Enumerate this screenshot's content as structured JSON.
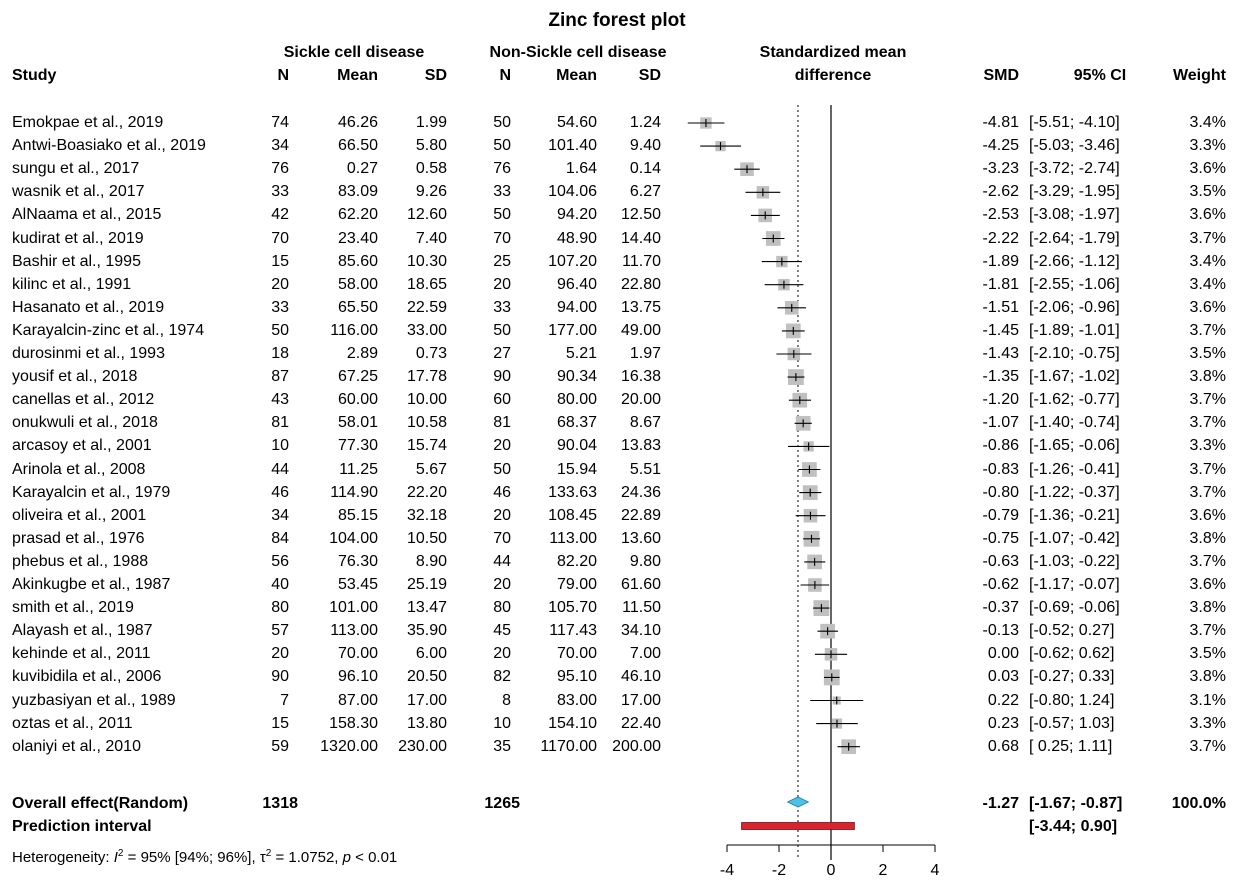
{
  "chart_data": {
    "type": "forest",
    "title": "Zinc forest plot",
    "group_headers": {
      "sickle": "Sickle cell disease",
      "non_sickle": "Non-Sickle cell disease",
      "smd_col": "Standardized mean",
      "smd_col2": "difference"
    },
    "columns": {
      "study": "Study",
      "n1": "N",
      "mean1": "Mean",
      "sd1": "SD",
      "n2": "N",
      "mean2": "Mean",
      "sd2": "SD",
      "smd": "SMD",
      "ci": "95% CI",
      "weight": "Weight"
    },
    "studies": [
      {
        "study": "Emokpae et al., 2019",
        "n1": "74",
        "mean1": "46.26",
        "sd1": "1.99",
        "n2": "50",
        "mean2": "54.60",
        "sd2": "1.24",
        "smd_text": "-4.81",
        "ci_text": "[-5.51; -4.10]",
        "weight_text": "3.4%",
        "smd": -4.81,
        "lo": -5.51,
        "hi": -4.1,
        "w": 3.4
      },
      {
        "study": "Antwi-Boasiako et al., 2019",
        "n1": "34",
        "mean1": "66.50",
        "sd1": "5.80",
        "n2": "50",
        "mean2": "101.40",
        "sd2": "9.40",
        "smd_text": "-4.25",
        "ci_text": "[-5.03; -3.46]",
        "weight_text": "3.3%",
        "smd": -4.25,
        "lo": -5.03,
        "hi": -3.46,
        "w": 3.3
      },
      {
        "study": "sungu et al., 2017",
        "n1": "76",
        "mean1": "0.27",
        "sd1": "0.58",
        "n2": "76",
        "mean2": "1.64",
        "sd2": "0.14",
        "smd_text": "-3.23",
        "ci_text": "[-3.72; -2.74]",
        "weight_text": "3.6%",
        "smd": -3.23,
        "lo": -3.72,
        "hi": -2.74,
        "w": 3.6
      },
      {
        "study": "wasnik et al., 2017",
        "n1": "33",
        "mean1": "83.09",
        "sd1": "9.26",
        "n2": "33",
        "mean2": "104.06",
        "sd2": "6.27",
        "smd_text": "-2.62",
        "ci_text": "[-3.29; -1.95]",
        "weight_text": "3.5%",
        "smd": -2.62,
        "lo": -3.29,
        "hi": -1.95,
        "w": 3.5
      },
      {
        "study": "AlNaama et al., 2015",
        "n1": "42",
        "mean1": "62.20",
        "sd1": "12.60",
        "n2": "50",
        "mean2": "94.20",
        "sd2": "12.50",
        "smd_text": "-2.53",
        "ci_text": "[-3.08; -1.97]",
        "weight_text": "3.6%",
        "smd": -2.53,
        "lo": -3.08,
        "hi": -1.97,
        "w": 3.6
      },
      {
        "study": "kudirat et al., 2019",
        "n1": "70",
        "mean1": "23.40",
        "sd1": "7.40",
        "n2": "70",
        "mean2": "48.90",
        "sd2": "14.40",
        "smd_text": "-2.22",
        "ci_text": "[-2.64; -1.79]",
        "weight_text": "3.7%",
        "smd": -2.22,
        "lo": -2.64,
        "hi": -1.79,
        "w": 3.7
      },
      {
        "study": "Bashir et al., 1995",
        "n1": "15",
        "mean1": "85.60",
        "sd1": "10.30",
        "n2": "25",
        "mean2": "107.20",
        "sd2": "11.70",
        "smd_text": "-1.89",
        "ci_text": "[-2.66; -1.12]",
        "weight_text": "3.4%",
        "smd": -1.89,
        "lo": -2.66,
        "hi": -1.12,
        "w": 3.4
      },
      {
        "study": "kilinc et al., 1991",
        "n1": "20",
        "mean1": "58.00",
        "sd1": "18.65",
        "n2": "20",
        "mean2": "96.40",
        "sd2": "22.80",
        "smd_text": "-1.81",
        "ci_text": "[-2.55; -1.06]",
        "weight_text": "3.4%",
        "smd": -1.81,
        "lo": -2.55,
        "hi": -1.06,
        "w": 3.4
      },
      {
        "study": "Hasanato et al., 2019",
        "n1": "33",
        "mean1": "65.50",
        "sd1": "22.59",
        "n2": "33",
        "mean2": "94.00",
        "sd2": "13.75",
        "smd_text": "-1.51",
        "ci_text": "[-2.06; -0.96]",
        "weight_text": "3.6%",
        "smd": -1.51,
        "lo": -2.06,
        "hi": -0.96,
        "w": 3.6
      },
      {
        "study": "Karayalcin-zinc et al., 1974",
        "n1": "50",
        "mean1": "116.00",
        "sd1": "33.00",
        "n2": "50",
        "mean2": "177.00",
        "sd2": "49.00",
        "smd_text": "-1.45",
        "ci_text": "[-1.89; -1.01]",
        "weight_text": "3.7%",
        "smd": -1.45,
        "lo": -1.89,
        "hi": -1.01,
        "w": 3.7
      },
      {
        "study": "durosinmi et al., 1993",
        "n1": "18",
        "mean1": "2.89",
        "sd1": "0.73",
        "n2": "27",
        "mean2": "5.21",
        "sd2": "1.97",
        "smd_text": "-1.43",
        "ci_text": "[-2.10; -0.75]",
        "weight_text": "3.5%",
        "smd": -1.43,
        "lo": -2.1,
        "hi": -0.75,
        "w": 3.5
      },
      {
        "study": "yousif et al., 2018",
        "n1": "87",
        "mean1": "67.25",
        "sd1": "17.78",
        "n2": "90",
        "mean2": "90.34",
        "sd2": "16.38",
        "smd_text": "-1.35",
        "ci_text": "[-1.67; -1.02]",
        "weight_text": "3.8%",
        "smd": -1.35,
        "lo": -1.67,
        "hi": -1.02,
        "w": 3.8
      },
      {
        "study": "canellas et al., 2012",
        "n1": "43",
        "mean1": "60.00",
        "sd1": "10.00",
        "n2": "60",
        "mean2": "80.00",
        "sd2": "20.00",
        "smd_text": "-1.20",
        "ci_text": "[-1.62; -0.77]",
        "weight_text": "3.7%",
        "smd": -1.2,
        "lo": -1.62,
        "hi": -0.77,
        "w": 3.7
      },
      {
        "study": "onukwuli et al., 2018",
        "n1": "81",
        "mean1": "58.01",
        "sd1": "10.58",
        "n2": "81",
        "mean2": "68.37",
        "sd2": "8.67",
        "smd_text": "-1.07",
        "ci_text": "[-1.40; -0.74]",
        "weight_text": "3.7%",
        "smd": -1.07,
        "lo": -1.4,
        "hi": -0.74,
        "w": 3.7
      },
      {
        "study": "arcasoy et al., 2001",
        "n1": "10",
        "mean1": "77.30",
        "sd1": "15.74",
        "n2": "20",
        "mean2": "90.04",
        "sd2": "13.83",
        "smd_text": "-0.86",
        "ci_text": "[-1.65; -0.06]",
        "weight_text": "3.3%",
        "smd": -0.86,
        "lo": -1.65,
        "hi": -0.06,
        "w": 3.3
      },
      {
        "study": "Arinola et al., 2008",
        "n1": "44",
        "mean1": "11.25",
        "sd1": "5.67",
        "n2": "50",
        "mean2": "15.94",
        "sd2": "5.51",
        "smd_text": "-0.83",
        "ci_text": "[-1.26; -0.41]",
        "weight_text": "3.7%",
        "smd": -0.83,
        "lo": -1.26,
        "hi": -0.41,
        "w": 3.7
      },
      {
        "study": "Karayalcin et al., 1979",
        "n1": "46",
        "mean1": "114.90",
        "sd1": "22.20",
        "n2": "46",
        "mean2": "133.63",
        "sd2": "24.36",
        "smd_text": "-0.80",
        "ci_text": "[-1.22; -0.37]",
        "weight_text": "3.7%",
        "smd": -0.8,
        "lo": -1.22,
        "hi": -0.37,
        "w": 3.7
      },
      {
        "study": "oliveira et al., 2001",
        "n1": "34",
        "mean1": "85.15",
        "sd1": "32.18",
        "n2": "20",
        "mean2": "108.45",
        "sd2": "22.89",
        "smd_text": "-0.79",
        "ci_text": "[-1.36; -0.21]",
        "weight_text": "3.6%",
        "smd": -0.79,
        "lo": -1.36,
        "hi": -0.21,
        "w": 3.6
      },
      {
        "study": "prasad et al., 1976",
        "n1": "84",
        "mean1": "104.00",
        "sd1": "10.50",
        "n2": "70",
        "mean2": "113.00",
        "sd2": "13.60",
        "smd_text": "-0.75",
        "ci_text": "[-1.07; -0.42]",
        "weight_text": "3.8%",
        "smd": -0.75,
        "lo": -1.07,
        "hi": -0.42,
        "w": 3.8
      },
      {
        "study": "phebus et al., 1988",
        "n1": "56",
        "mean1": "76.30",
        "sd1": "8.90",
        "n2": "44",
        "mean2": "82.20",
        "sd2": "9.80",
        "smd_text": "-0.63",
        "ci_text": "[-1.03; -0.22]",
        "weight_text": "3.7%",
        "smd": -0.63,
        "lo": -1.03,
        "hi": -0.22,
        "w": 3.7
      },
      {
        "study": "Akinkugbe et al., 1987",
        "n1": "40",
        "mean1": "53.45",
        "sd1": "25.19",
        "n2": "20",
        "mean2": "79.00",
        "sd2": "61.60",
        "smd_text": "-0.62",
        "ci_text": "[-1.17; -0.07]",
        "weight_text": "3.6%",
        "smd": -0.62,
        "lo": -1.17,
        "hi": -0.07,
        "w": 3.6
      },
      {
        "study": "smith et al., 2019",
        "n1": "80",
        "mean1": "101.00",
        "sd1": "13.47",
        "n2": "80",
        "mean2": "105.70",
        "sd2": "11.50",
        "smd_text": "-0.37",
        "ci_text": "[-0.69; -0.06]",
        "weight_text": "3.8%",
        "smd": -0.37,
        "lo": -0.69,
        "hi": -0.06,
        "w": 3.8
      },
      {
        "study": "Alayash et al., 1987",
        "n1": "57",
        "mean1": "113.00",
        "sd1": "35.90",
        "n2": "45",
        "mean2": "117.43",
        "sd2": "34.10",
        "smd_text": "-0.13",
        "ci_text": "[-0.52;  0.27]",
        "weight_text": "3.7%",
        "smd": -0.13,
        "lo": -0.52,
        "hi": 0.27,
        "w": 3.7
      },
      {
        "study": "kehinde et al., 2011",
        "n1": "20",
        "mean1": "70.00",
        "sd1": "6.00",
        "n2": "20",
        "mean2": "70.00",
        "sd2": "7.00",
        "smd_text": "0.00",
        "ci_text": "[-0.62;  0.62]",
        "weight_text": "3.5%",
        "smd": 0.0,
        "lo": -0.62,
        "hi": 0.62,
        "w": 3.5
      },
      {
        "study": "kuvibidila et al., 2006",
        "n1": "90",
        "mean1": "96.10",
        "sd1": "20.50",
        "n2": "82",
        "mean2": "95.10",
        "sd2": "46.10",
        "smd_text": "0.03",
        "ci_text": "[-0.27;  0.33]",
        "weight_text": "3.8%",
        "smd": 0.03,
        "lo": -0.27,
        "hi": 0.33,
        "w": 3.8
      },
      {
        "study": "yuzbasiyan  et al., 1989",
        "n1": "7",
        "mean1": "87.00",
        "sd1": "17.00",
        "n2": "8",
        "mean2": "83.00",
        "sd2": "17.00",
        "smd_text": "0.22",
        "ci_text": "[-0.80;  1.24]",
        "weight_text": "3.1%",
        "smd": 0.22,
        "lo": -0.8,
        "hi": 1.24,
        "w": 3.1
      },
      {
        "study": "oztas et al., 2011",
        "n1": "15",
        "mean1": "158.30",
        "sd1": "13.80",
        "n2": "10",
        "mean2": "154.10",
        "sd2": "22.40",
        "smd_text": "0.23",
        "ci_text": "[-0.57;  1.03]",
        "weight_text": "3.3%",
        "smd": 0.23,
        "lo": -0.57,
        "hi": 1.03,
        "w": 3.3
      },
      {
        "study": "olaniyi et al., 2010",
        "n1": "59",
        "mean1": "1320.00",
        "sd1": "230.00",
        "n2": "35",
        "mean2": "1170.00",
        "sd2": "200.00",
        "smd_text": "0.68",
        "ci_text": "[ 0.25;  1.11]",
        "weight_text": "3.7%",
        "smd": 0.68,
        "lo": 0.25,
        "hi": 1.11,
        "w": 3.7
      }
    ],
    "overall": {
      "label": "Overall effect(Random)",
      "n1": "1318",
      "n2": "1265",
      "smd_text": "-1.27",
      "ci_text": "[-1.67; -0.87]",
      "weight_text": "100.0%",
      "smd": -1.27,
      "lo": -1.67,
      "hi": -0.87
    },
    "prediction": {
      "label": "Prediction interval",
      "ci_text": "[-3.44;  0.90]",
      "lo": -3.44,
      "hi": 0.9
    },
    "heterogeneity": {
      "prefix": "Heterogeneity: ",
      "i2_symbol": "I",
      "i2_sup": "2",
      "i2_rest": " = 95% [94%; 96%], ",
      "tau_symbol": "τ",
      "tau_sup": "2",
      "tau_rest": " = 1.0752, ",
      "p_symbol": "p",
      "p_rest": " < 0.01"
    },
    "x_ticks": [
      "-4",
      "-2",
      "0",
      "2",
      "4"
    ],
    "xlim": [
      -5,
      4
    ],
    "colors": {
      "square": "#c0c0c0",
      "diamond": "#4fc1e9",
      "prediction": "#d9232e",
      "lines": "#000000"
    }
  }
}
